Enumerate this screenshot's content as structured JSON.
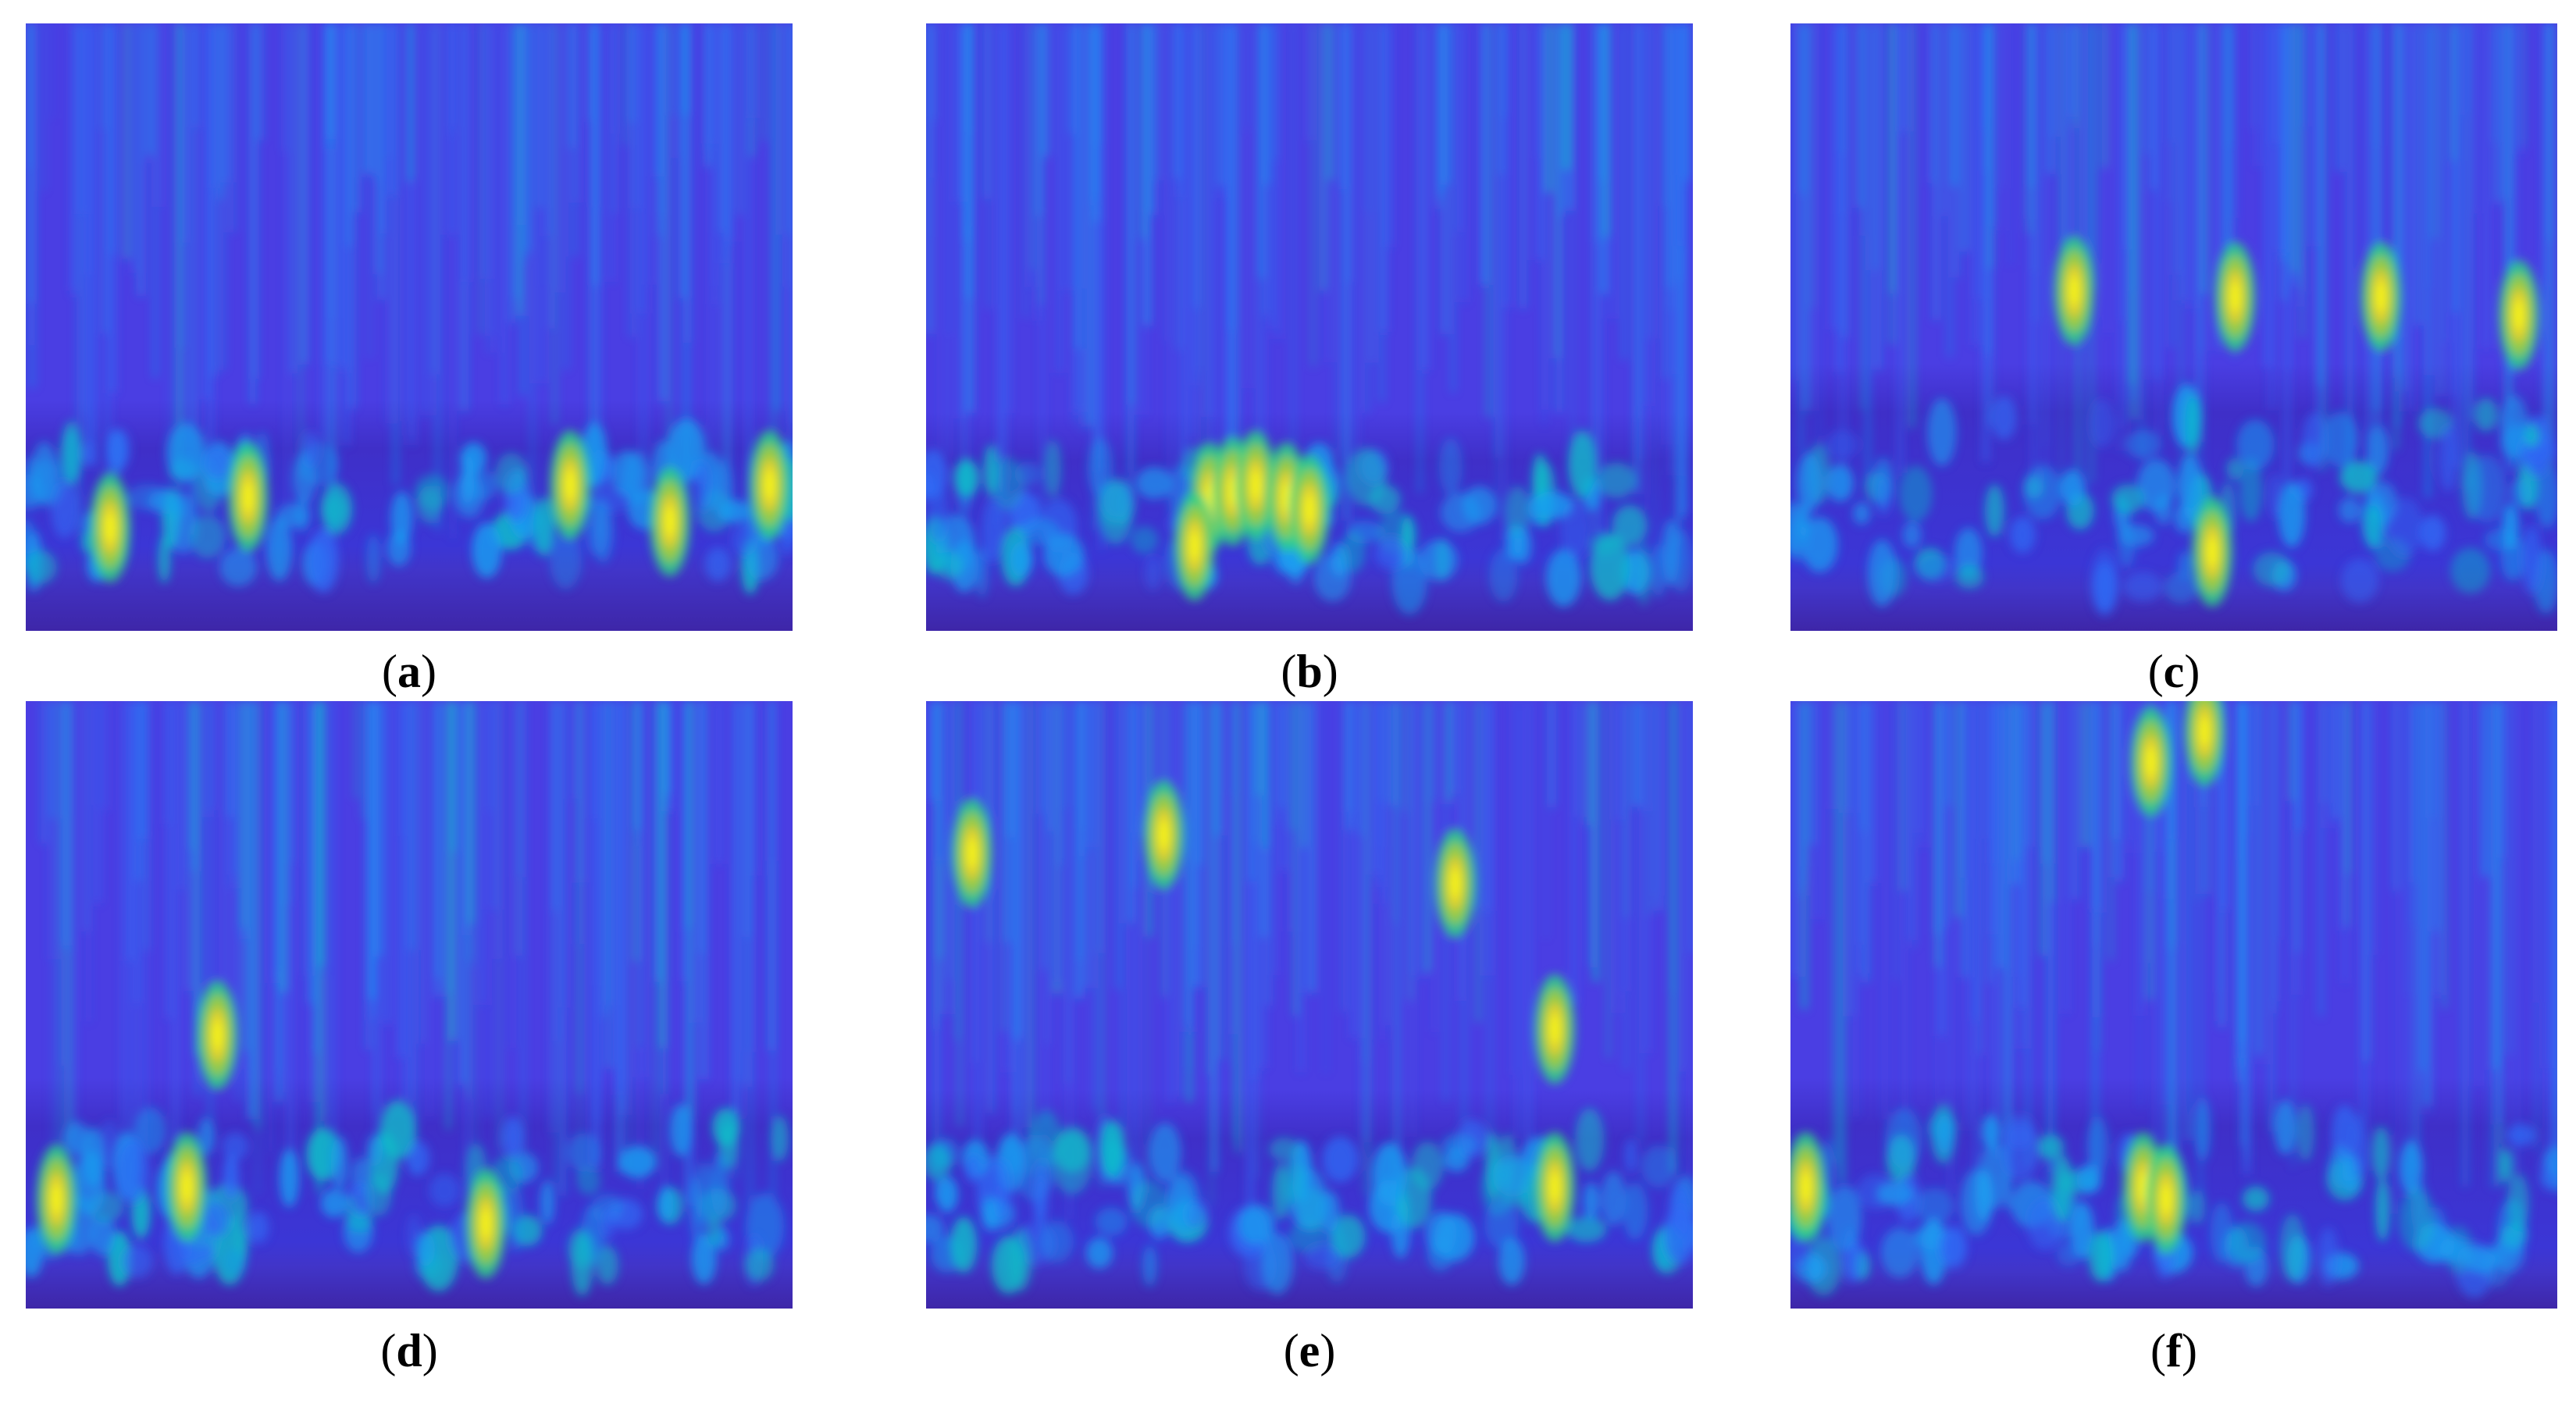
{
  "figure": {
    "panels": [
      {
        "label": "a",
        "caption_open": "(",
        "caption_close": ")"
      },
      {
        "label": "b",
        "caption_open": "(",
        "caption_close": ")"
      },
      {
        "label": "c",
        "caption_open": "(",
        "caption_close": ")"
      },
      {
        "label": "d",
        "caption_open": "(",
        "caption_close": ")"
      },
      {
        "label": "e",
        "caption_open": "(",
        "caption_close": ")"
      },
      {
        "label": "f",
        "caption_open": "(",
        "caption_close": ")"
      }
    ],
    "colormap": [
      "#3e26a8",
      "#4a3ee3",
      "#2f6bf5",
      "#1b9df0",
      "#0fc1c8",
      "#2fd185",
      "#a8cc3a",
      "#f2d22a",
      "#f9fb0e"
    ]
  }
}
